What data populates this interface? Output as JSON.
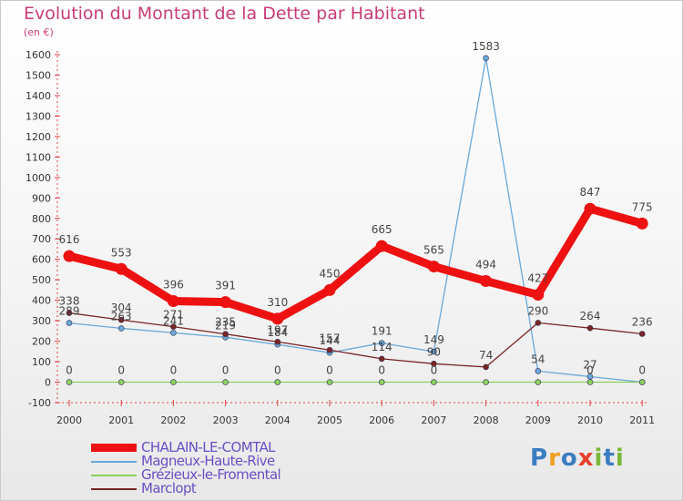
{
  "title": "Evolution du Montant de la Dette par Habitant",
  "subtitle": "(en €)",
  "logo": {
    "letters": [
      "P",
      "r",
      "o",
      "x",
      "i",
      "t",
      "i"
    ],
    "colors": [
      "#3a7dc0",
      "#f0a020",
      "#3a7dc0",
      "#e8402c",
      "#7ab838",
      "#3a7dc0",
      "#7ab838"
    ]
  },
  "chart_data": {
    "type": "line",
    "title": "Evolution du Montant de la Dette par Habitant",
    "ylabel": "(en €)",
    "xlabel": "",
    "ylim": [
      -100,
      1600
    ],
    "ytick_step": 100,
    "grid": false,
    "legend_position": "bottom-left",
    "x": [
      "2000",
      "2001",
      "2002",
      "2003",
      "2004",
      "2005",
      "2006",
      "2007",
      "2008",
      "2009",
      "2010",
      "2011"
    ],
    "series": [
      {
        "name": "CHALAIN-LE-COMTAL",
        "color": "#ee1111",
        "width": 9,
        "values": [
          616,
          553,
          396,
          391,
          310,
          450,
          665,
          565,
          494,
          427,
          847,
          775
        ],
        "labels": [
          "616",
          "553",
          "396",
          "391",
          "310",
          "450",
          "665",
          "565",
          "494",
          "427",
          "847",
          "775"
        ]
      },
      {
        "name": "Magneux-Haute-Rive",
        "color": "#6aa8d8",
        "width": 1.3,
        "values": [
          289,
          263,
          241,
          219,
          184,
          144,
          191,
          149,
          1583,
          54,
          27,
          0
        ],
        "labels": [
          "289",
          "263",
          "241",
          "219",
          "184",
          "144",
          "191",
          "149",
          "1583",
          "54",
          "27",
          "0"
        ]
      },
      {
        "name": "Grézieux-le-Fromental",
        "color": "#8cd060",
        "width": 1.3,
        "values": [
          0,
          0,
          0,
          0,
          0,
          0,
          0,
          0,
          0,
          0,
          0,
          0
        ],
        "labels": [
          "0",
          "0",
          "0",
          "0",
          "0",
          "0",
          "0",
          "0",
          "",
          "",
          "0",
          ""
        ]
      },
      {
        "name": "Marclopt",
        "color": "#7a2424",
        "width": 1.3,
        "values": [
          338,
          304,
          271,
          235,
          197,
          157,
          114,
          90,
          74,
          290,
          264,
          236
        ],
        "labels": [
          "338",
          "304",
          "271",
          "235",
          "197",
          "157",
          "114",
          "90",
          "74",
          "290",
          "264",
          "236"
        ]
      }
    ]
  }
}
